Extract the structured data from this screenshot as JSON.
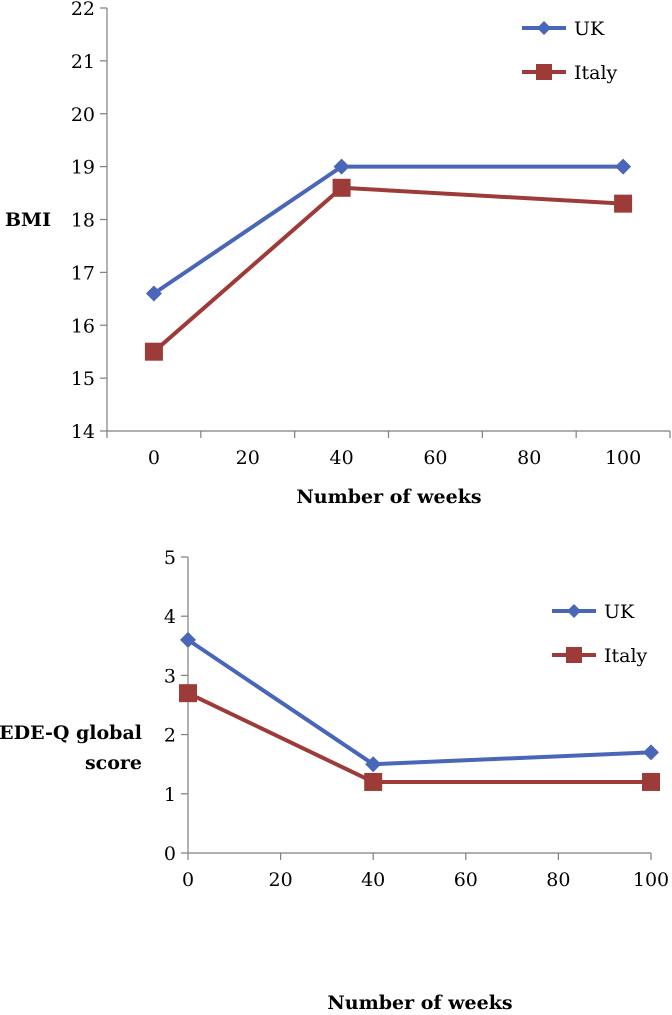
{
  "colors": {
    "uk": "#4a66b8",
    "italy": "#9c3b38"
  },
  "chart_data": [
    {
      "type": "line",
      "x": [
        0,
        40,
        100
      ],
      "series": [
        {
          "name": "UK",
          "values": [
            16.6,
            19.0,
            19.0
          ],
          "marker": "diamond"
        },
        {
          "name": "Italy",
          "values": [
            15.5,
            18.6,
            18.3
          ],
          "marker": "square"
        }
      ],
      "xlabel": "Number of weeks",
      "ylabel": "BMI",
      "xlim": [
        -10,
        110
      ],
      "ylim": [
        14,
        22
      ],
      "xticks": [
        0,
        20,
        40,
        60,
        80,
        100
      ],
      "xtick_labels": [
        "0",
        "20",
        "40",
        "60",
        "80",
        "100"
      ],
      "yticks": [
        14,
        15,
        16,
        17,
        18,
        19,
        20,
        21,
        22
      ],
      "ytick_labels": [
        "14",
        "15",
        "16",
        "17",
        "18",
        "19",
        "20",
        "21",
        "22"
      ],
      "legend": [
        "UK",
        "Italy"
      ],
      "legend_position": "top-right",
      "grid": false
    },
    {
      "type": "line",
      "x": [
        0,
        40,
        100
      ],
      "series": [
        {
          "name": "UK",
          "values": [
            3.6,
            1.5,
            1.7
          ],
          "marker": "diamond"
        },
        {
          "name": "Italy",
          "values": [
            2.7,
            1.2,
            1.2
          ],
          "marker": "square"
        }
      ],
      "xlabel": "Number of weeks",
      "ylabel": [
        "EDE-Q global",
        "score"
      ],
      "xlim": [
        0,
        100
      ],
      "ylim": [
        0,
        5
      ],
      "xticks": [
        0,
        20,
        40,
        60,
        80,
        100
      ],
      "xtick_labels": [
        "0",
        "20",
        "40",
        "60",
        "80",
        "100"
      ],
      "yticks": [
        0,
        1,
        2,
        3,
        4,
        5
      ],
      "ytick_labels": [
        "0",
        "1",
        "2",
        "3",
        "4",
        "5"
      ],
      "legend": [
        "UK",
        "Italy"
      ],
      "legend_position": "top-right",
      "grid": false
    }
  ]
}
